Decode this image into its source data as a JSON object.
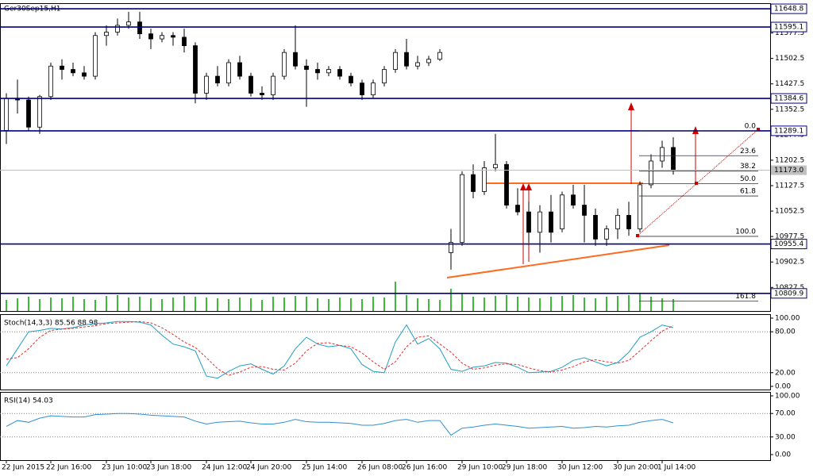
{
  "chart_data": [
    {
      "type": "candlestick",
      "title": "Ger30Sep15,H1",
      "categories": [
        "22 Jun 2015",
        null,
        null,
        null,
        "22 Jun 16:00",
        null,
        null,
        null,
        null,
        "23 Jun 10:00",
        null,
        null,
        null,
        "23 Jun 18:00",
        null,
        null,
        null,
        null,
        "24 Jun 12:00",
        null,
        null,
        null,
        "24 Jun 20:00",
        null,
        null,
        null,
        null,
        "25 Jun 14:00",
        null,
        null,
        null,
        null,
        "26 Jun 08:00",
        null,
        null,
        null,
        "26 Jun 16:00",
        null,
        null,
        null,
        null,
        "29 Jun 10:00",
        null,
        null,
        null,
        "29 Jun 18:00",
        null,
        null,
        null,
        null,
        "30 Jun 12:00",
        null,
        null,
        null,
        null,
        "30 Jun 20:00",
        null,
        null,
        null,
        "1 Jul 14:00",
        null
      ],
      "open": [
        11290,
        11385,
        11380,
        11300,
        11390,
        11480,
        11470,
        11460,
        11450,
        11570,
        11580,
        11600,
        11610,
        11575,
        11560,
        11570,
        11565,
        11540,
        11400,
        11450,
        11430,
        11490,
        11450,
        11400,
        11395,
        11450,
        11520,
        11480,
        11470,
        11460,
        11470,
        11450,
        11430,
        11395,
        11430,
        11470,
        11520,
        11480,
        11490,
        11500,
        10930,
        10960,
        11160,
        11110,
        11180,
        11190,
        11070,
        11050,
        10990,
        11050,
        11000,
        11100,
        11070,
        11040,
        10970,
        11000,
        11040,
        11000,
        11130,
        11200,
        11240
      ],
      "high": [
        11400,
        11440,
        11390,
        11395,
        11490,
        11500,
        11490,
        11480,
        11580,
        11600,
        11620,
        11640,
        11640,
        11590,
        11580,
        11580,
        11590,
        11550,
        11460,
        11480,
        11500,
        11510,
        11460,
        11420,
        11460,
        11530,
        11600,
        11500,
        11490,
        11480,
        11480,
        11460,
        11440,
        11440,
        11480,
        11530,
        11560,
        11510,
        11510,
        11530,
        11000,
        11170,
        11190,
        11200,
        11280,
        11200,
        11120,
        11080,
        11070,
        11100,
        11110,
        11130,
        11130,
        11060,
        11010,
        11060,
        11080,
        11140,
        11220,
        11260,
        11270
      ],
      "low": [
        11250,
        11340,
        11290,
        11280,
        11380,
        11440,
        11450,
        11440,
        11440,
        11540,
        11570,
        11590,
        11560,
        11530,
        11550,
        11540,
        11520,
        11370,
        11380,
        11420,
        11420,
        11440,
        11390,
        11380,
        11380,
        11440,
        11470,
        11360,
        11440,
        11450,
        11440,
        11420,
        11380,
        11385,
        11420,
        11460,
        11470,
        11470,
        11480,
        11495,
        10880,
        10950,
        11090,
        11100,
        11170,
        11060,
        11040,
        10960,
        10930,
        10960,
        10990,
        11060,
        10960,
        10950,
        10950,
        10970,
        10980,
        10990,
        11120,
        11180,
        11160
      ],
      "close": [
        11385,
        11380,
        11300,
        11390,
        11480,
        11470,
        11460,
        11450,
        11570,
        11580,
        11600,
        11610,
        11575,
        11560,
        11570,
        11565,
        11540,
        11400,
        11450,
        11430,
        11490,
        11450,
        11400,
        11395,
        11450,
        11520,
        11480,
        11470,
        11460,
        11470,
        11450,
        11430,
        11395,
        11430,
        11470,
        11520,
        11480,
        11490,
        11500,
        11520,
        10960,
        11160,
        11110,
        11180,
        11190,
        11070,
        11050,
        10990,
        11050,
        10990,
        11100,
        11070,
        11040,
        10970,
        11000,
        11040,
        11000,
        11130,
        11200,
        11240,
        11173
      ],
      "volume": [
        14,
        16,
        18,
        15,
        17,
        16,
        18,
        15,
        14,
        19,
        20,
        17,
        18,
        16,
        15,
        17,
        19,
        18,
        17,
        16,
        15,
        17,
        16,
        14,
        18,
        17,
        19,
        18,
        16,
        15,
        17,
        16,
        15,
        18,
        17,
        37,
        20,
        16,
        15,
        14,
        28,
        22,
        18,
        17,
        19,
        20,
        18,
        17,
        16,
        18,
        19,
        20,
        17,
        16,
        18,
        19,
        20,
        22,
        18,
        16,
        15
      ],
      "volume_lim": [
        0,
        40
      ],
      "ylim": [
        10758,
        11663
      ],
      "yticks": [
        11577.5,
        11502.5,
        11427.5,
        11352.5,
        11277.5,
        11202.5,
        11127.5,
        11052.5,
        10977.5,
        10902.5,
        10827.5
      ],
      "levels": [
        11648.8,
        11595.1,
        11384.6,
        11289.1,
        10955.4,
        10809.9
      ],
      "current": {
        "value": 11173,
        "label": "11173.0"
      },
      "fib": [
        {
          "value": 11289.1,
          "label": "0.0"
        },
        {
          "value": 11215.7,
          "label": "23.6"
        },
        {
          "value": 11170.3,
          "label": "38.2"
        },
        {
          "value": 11133.6,
          "label": "50.0"
        },
        {
          "value": 11096.9,
          "label": "61.8"
        },
        {
          "value": 10978,
          "label": "100.0"
        },
        {
          "value": 10786.9,
          "label": "161.8"
        }
      ]
    },
    {
      "type": "line",
      "title": "Stoch(14,3,3) 85.56 88.98",
      "series": [
        {
          "color": "#20a0c0",
          "values": [
            30,
            55,
            80,
            82,
            85,
            84,
            86,
            90,
            92,
            93,
            95,
            95,
            94,
            90,
            75,
            62,
            58,
            52,
            15,
            12,
            22,
            30,
            33,
            25,
            18,
            30,
            55,
            72,
            62,
            58,
            60,
            55,
            32,
            22,
            20,
            65,
            90,
            62,
            70,
            55,
            25,
            22,
            28,
            30,
            35,
            34,
            28,
            20,
            21,
            22,
            28,
            38,
            42,
            36,
            30,
            35,
            50,
            72,
            80,
            90,
            86
          ]
        },
        {
          "color": "#e03030",
          "dashed": true,
          "values": [
            40,
            42,
            55,
            72,
            82,
            84,
            85,
            87,
            89,
            92,
            93,
            94,
            95,
            93,
            86,
            76,
            65,
            57,
            42,
            26,
            16,
            21,
            28,
            29,
            25,
            24,
            34,
            52,
            63,
            64,
            60,
            58,
            49,
            36,
            25,
            36,
            58,
            72,
            74,
            62,
            50,
            34,
            25,
            27,
            31,
            33,
            32,
            27,
            23,
            21,
            24,
            29,
            36,
            39,
            36,
            34,
            38,
            52,
            67,
            81,
            89
          ]
        }
      ],
      "ylim": [
        0,
        100
      ],
      "yticks": [
        {
          "value": 100,
          "label": "100.00"
        },
        {
          "value": 80,
          "label": "80.00"
        },
        {
          "value": 20,
          "label": "20.00"
        },
        {
          "value": 0,
          "label": "0.00"
        }
      ],
      "levels": [
        80,
        20
      ]
    },
    {
      "type": "line",
      "title": "RSI(14) 54.03",
      "series": [
        {
          "color": "#3090d0",
          "values": [
            48,
            58,
            55,
            62,
            66,
            65,
            64,
            64,
            68,
            69,
            70,
            70,
            69,
            67,
            66,
            65,
            64,
            57,
            52,
            55,
            56,
            57,
            54,
            52,
            52,
            55,
            60,
            56,
            55,
            55,
            54,
            53,
            50,
            50,
            53,
            58,
            60,
            55,
            58,
            58,
            33,
            45,
            47,
            50,
            52,
            50,
            48,
            45,
            46,
            47,
            48,
            45,
            46,
            48,
            47,
            49,
            50,
            55,
            58,
            60,
            54
          ]
        }
      ],
      "ylim": [
        0,
        100
      ],
      "yticks": [
        {
          "value": 100,
          "label": "100.00"
        },
        {
          "value": 70,
          "label": "70.00"
        },
        {
          "value": 30,
          "label": "30.00"
        },
        {
          "value": 0,
          "label": "0.00"
        }
      ],
      "levels": [
        70,
        30
      ]
    }
  ]
}
